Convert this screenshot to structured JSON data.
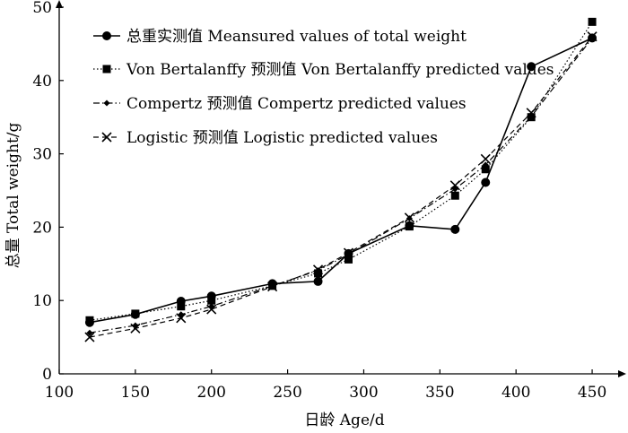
{
  "chart_data": {
    "type": "line",
    "xlabel": "日龄 Age/d",
    "ylabel": "总量 Total weight/g",
    "xlim": [
      100,
      470
    ],
    "ylim": [
      0,
      50
    ],
    "xticks": [
      100,
      150,
      200,
      250,
      300,
      350,
      400,
      450
    ],
    "yticks": [
      0,
      10,
      20,
      30,
      40,
      50
    ],
    "grid": false,
    "legend_position": "top-left",
    "series": [
      {
        "name": "总重实测值 Meansured values of total weight",
        "style": "solid",
        "marker": "circle",
        "color": "#000000",
        "x": [
          120,
          150,
          180,
          200,
          240,
          270,
          290,
          330,
          360,
          380,
          410,
          450
        ],
        "y": [
          7.0,
          8.1,
          9.9,
          10.6,
          12.3,
          12.6,
          16.4,
          20.2,
          19.7,
          26.1,
          41.9,
          45.8
        ]
      },
      {
        "name": "Von Bertalanffy 预测值 Von Bertalanffy predicted values",
        "style": "dotted",
        "marker": "square",
        "color": "#000000",
        "x": [
          120,
          150,
          180,
          200,
          240,
          270,
          290,
          330,
          360,
          380,
          410,
          450
        ],
        "y": [
          7.3,
          8.2,
          9.2,
          10.0,
          12.0,
          13.7,
          15.6,
          20.1,
          24.3,
          27.9,
          35.0,
          48.0
        ]
      },
      {
        "name": "Compertz 预测值 Compertz predicted values",
        "style": "dashdot",
        "marker": "diamond",
        "color": "#000000",
        "x": [
          120,
          150,
          180,
          200,
          240,
          270,
          290,
          330,
          360,
          380,
          410,
          450
        ],
        "y": [
          5.6,
          6.6,
          8.1,
          9.2,
          12.0,
          14.1,
          16.3,
          21.2,
          25.2,
          28.5,
          35.1,
          45.8
        ]
      },
      {
        "name": "Logistic 预测值 Logistic predicted values",
        "style": "dashed",
        "marker": "x",
        "color": "#000000",
        "x": [
          120,
          150,
          180,
          200,
          240,
          270,
          290,
          330,
          360,
          380,
          410,
          450
        ],
        "y": [
          5.0,
          6.2,
          7.6,
          8.8,
          11.9,
          14.2,
          16.5,
          21.3,
          25.7,
          29.3,
          35.6,
          46.0
        ]
      }
    ]
  }
}
